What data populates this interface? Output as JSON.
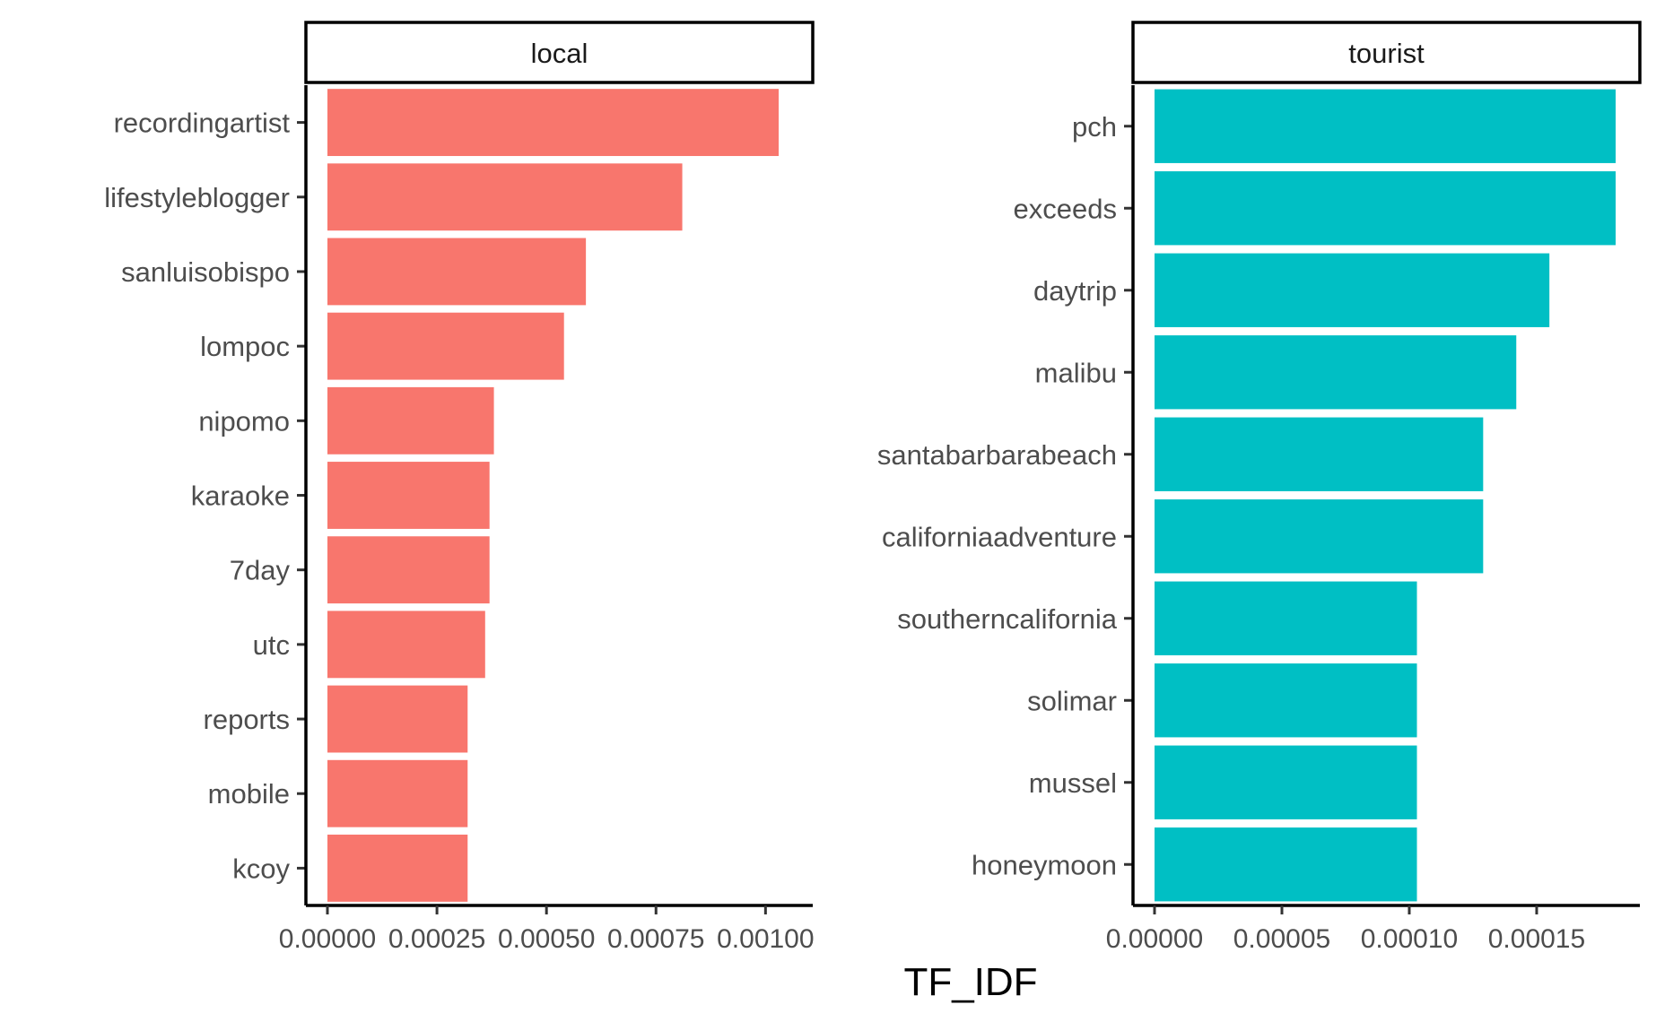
{
  "chart_data": [
    {
      "type": "bar",
      "orientation": "horizontal",
      "panel": "local",
      "categories": [
        "recordingartist",
        "lifestyleblogger",
        "sanluisobispo",
        "lompoc",
        "nipomo",
        "karaoke",
        "7day",
        "utc",
        "reports",
        "mobile",
        "kcoy"
      ],
      "values": [
        0.00103,
        0.00081,
        0.00059,
        0.00054,
        0.00038,
        0.00037,
        0.00037,
        0.00036,
        0.00032,
        0.00032,
        0.00032
      ],
      "xlim": [
        0,
        0.00106
      ],
      "xticks": [
        0,
        0.00025,
        0.0005,
        0.00075,
        0.001
      ],
      "xtick_labels": [
        "0.00000",
        "0.00025",
        "0.00050",
        "0.00075",
        "0.00100"
      ],
      "color": "#f8766d"
    },
    {
      "type": "bar",
      "orientation": "horizontal",
      "panel": "tourist",
      "categories": [
        "pch",
        "exceeds",
        "daytrip",
        "malibu",
        "santabarbarabeach",
        "californiaadventure",
        "southerncalifornia",
        "solimar",
        "mussel",
        "honeymoon"
      ],
      "values": [
        0.000181,
        0.000181,
        0.000155,
        0.000142,
        0.000129,
        0.000129,
        0.000103,
        0.000103,
        0.000103,
        0.000103
      ],
      "xlim": [
        0,
        0.000188
      ],
      "xticks": [
        0,
        5e-05,
        0.0001,
        0.00015
      ],
      "xtick_labels": [
        "0.00000",
        "0.00005",
        "0.00010",
        "0.00015"
      ],
      "color": "#00bfc4"
    }
  ],
  "xlabel": "TF_IDF"
}
